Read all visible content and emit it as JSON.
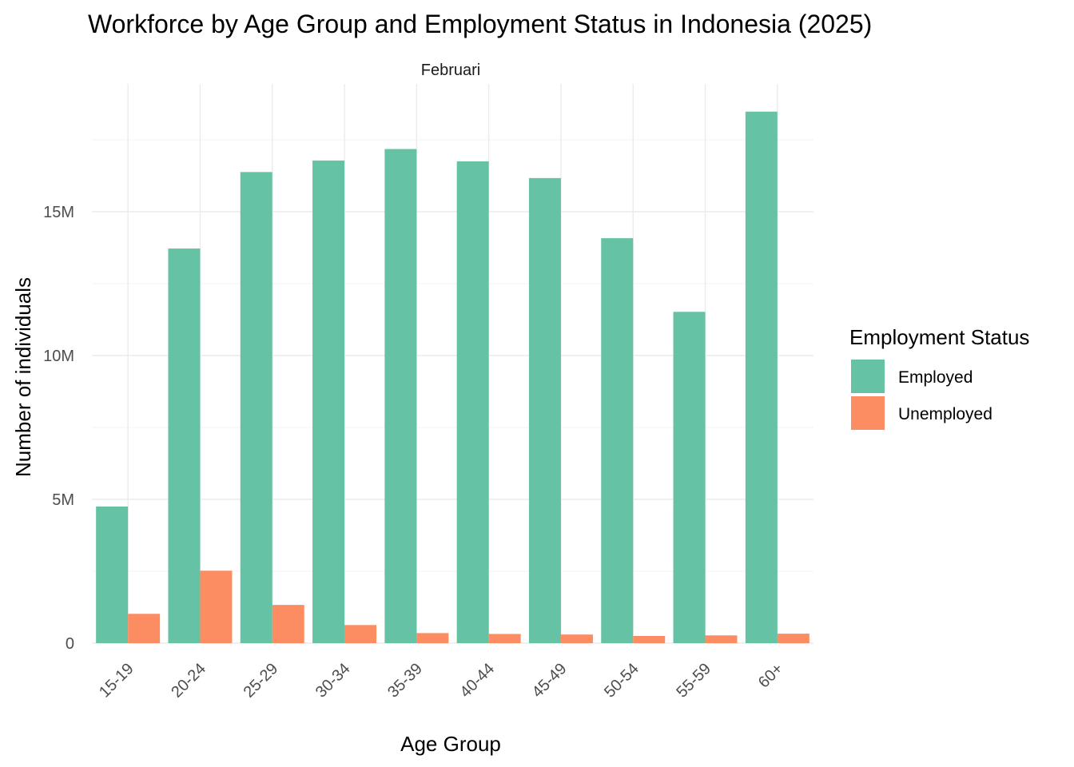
{
  "chart_data": {
    "type": "bar",
    "title": "Workforce by Age Group and Employment Status in Indonesia (2025)",
    "facet": "Februari",
    "xlabel": "Age Group",
    "ylabel": "Number of individuals",
    "categories": [
      "15-19",
      "20-24",
      "25-29",
      "30-34",
      "35-39",
      "40-44",
      "45-49",
      "50-54",
      "55-59",
      "60+"
    ],
    "series": [
      {
        "name": "Employed",
        "color": "#66c2a5",
        "values": [
          4.75,
          13.72,
          16.38,
          16.78,
          17.18,
          16.75,
          16.17,
          14.08,
          11.52,
          18.48
        ]
      },
      {
        "name": "Unemployed",
        "color": "#fc8d62",
        "values": [
          1.02,
          2.52,
          1.33,
          0.63,
          0.35,
          0.32,
          0.3,
          0.25,
          0.27,
          0.33
        ]
      }
    ],
    "value_unit": "millions",
    "ylim": [
      0,
      19
    ],
    "yticks": [
      0,
      5,
      10,
      15
    ],
    "ytick_labels": [
      "0",
      "5M",
      "10M",
      "15M"
    ],
    "grid": true,
    "legend": {
      "title": "Employment Status",
      "position": "right"
    }
  }
}
